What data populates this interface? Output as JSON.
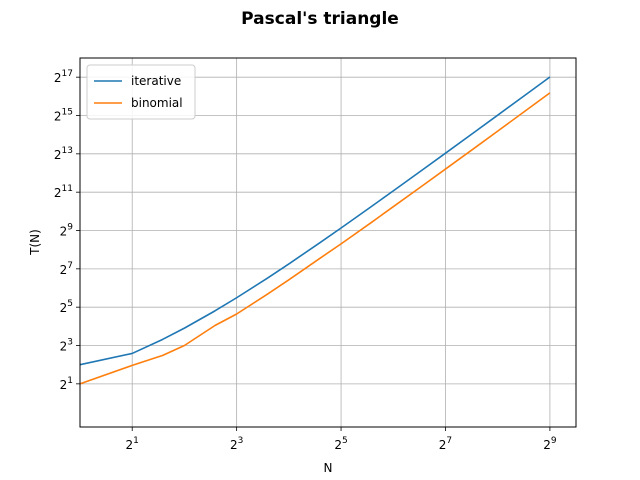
{
  "chart_data": {
    "type": "line",
    "title": "Pascal's triangle",
    "xlabel": "N",
    "ylabel": "T(N)",
    "x_scale": "log2",
    "y_scale": "log2",
    "xlim": [
      1,
      724
    ],
    "ylim": [
      0.42,
      262144
    ],
    "grid": true,
    "legend_position": "top-left",
    "x_ticks": [
      {
        "base": "2",
        "exp": "1",
        "value": 2
      },
      {
        "base": "2",
        "exp": "3",
        "value": 8
      },
      {
        "base": "2",
        "exp": "5",
        "value": 32
      },
      {
        "base": "2",
        "exp": "7",
        "value": 128
      },
      {
        "base": "2",
        "exp": "9",
        "value": 512
      }
    ],
    "y_ticks": [
      {
        "base": "2",
        "exp": "1",
        "value": 2
      },
      {
        "base": "2",
        "exp": "3",
        "value": 8
      },
      {
        "base": "2",
        "exp": "5",
        "value": 32
      },
      {
        "base": "2",
        "exp": "7",
        "value": 128
      },
      {
        "base": "2",
        "exp": "9",
        "value": 512
      },
      {
        "base": "2",
        "exp": "11",
        "value": 2048
      },
      {
        "base": "2",
        "exp": "13",
        "value": 8192
      },
      {
        "base": "2",
        "exp": "15",
        "value": 32768
      },
      {
        "base": "2",
        "exp": "17",
        "value": 131072
      }
    ],
    "series": [
      {
        "name": "iterative",
        "color": "#1f77b4",
        "x": [
          1,
          2,
          3,
          4,
          6,
          8,
          12,
          16,
          24,
          32,
          48,
          64,
          96,
          128,
          192,
          256,
          384,
          512
        ],
        "y": [
          4,
          6,
          10,
          15,
          28,
          45,
          91,
          153,
          325,
          561,
          1225,
          2145,
          4753,
          8385,
          18721,
          33153,
          74305,
          131841
        ]
      },
      {
        "name": "binomial",
        "color": "#ff7f0e",
        "x": [
          1,
          2,
          3,
          4,
          6,
          8,
          12,
          16,
          24,
          32,
          48,
          64,
          96,
          128,
          192,
          256,
          384,
          512
        ],
        "y": [
          2,
          3.9,
          5.6,
          8,
          16.5,
          25,
          51,
          86,
          185,
          316,
          688,
          1212,
          2680,
          4720,
          10520,
          18640,
          41800,
          74200
        ]
      }
    ]
  }
}
